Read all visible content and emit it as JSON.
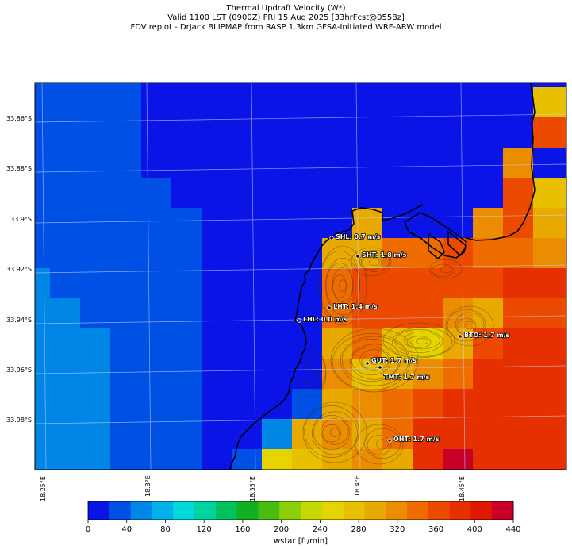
{
  "title": {
    "line1": "Thermal Updraft Velocity (W*)",
    "line2": "Valid 1100 LST (0900Z) FRI 15 Aug 2025 [33hrFcst@0558z]",
    "line3": "FDV replot - DrJack BLIPMAP from RASP 1.3km GFSA-Initiated WRF-ARW model"
  },
  "axes": {
    "lat_labels": [
      "33.86°S",
      "33.88°S",
      "33.9°S",
      "33.92°S",
      "33.94°S",
      "33.96°S",
      "33.98°S"
    ],
    "lon_labels": [
      "18.25°E",
      "18.3°E",
      "18.35°E",
      "18.4°E",
      "18.45°E"
    ]
  },
  "stations": [
    {
      "code": "SHL",
      "label": "SHL: 0.7 m/s",
      "value_ms": 0.7
    },
    {
      "code": "SHT",
      "label": "SHT: 1.8 m/s",
      "value_ms": 1.8
    },
    {
      "code": "LHT",
      "label": "LHT: 1.4 m/s",
      "value_ms": 1.4
    },
    {
      "code": "LHL",
      "label": "LHL: 0.0 m/s",
      "value_ms": 0.0
    },
    {
      "code": "BTO",
      "label": "BTO: 1.7 m/s",
      "value_ms": 1.7
    },
    {
      "code": "GUT",
      "label": "GUT: 1.7 m/s",
      "value_ms": 1.7
    },
    {
      "code": "TMT",
      "label": "TMT: 1.7 m/s",
      "value_ms": 1.7
    },
    {
      "code": "OHT",
      "label": "OHT: 1.7 m/s",
      "value_ms": 1.7
    }
  ],
  "colorbar": {
    "ticks": [
      "0",
      "40",
      "80",
      "120",
      "160",
      "200",
      "240",
      "280",
      "320",
      "360",
      "400",
      "440"
    ],
    "label": "wstar [ft/min]",
    "colors": [
      "#0a14e6",
      "#0050e6",
      "#0087e6",
      "#00b0e8",
      "#00d8dc",
      "#00d2a0",
      "#00c060",
      "#10b020",
      "#48bc10",
      "#8cce08",
      "#c4d800",
      "#e6d400",
      "#e8c000",
      "#e8aa00",
      "#ec8c00",
      "#ee6c00",
      "#ec4a00",
      "#e63000",
      "#e01800",
      "#c80028"
    ]
  }
}
